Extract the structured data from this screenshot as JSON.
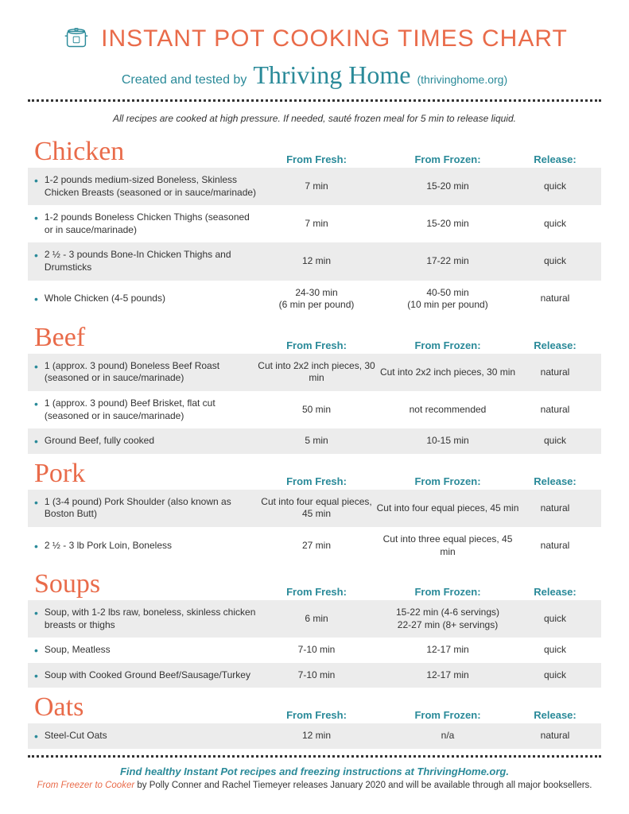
{
  "colors": {
    "accent_orange": "#e96b4a",
    "accent_teal": "#2a8a99",
    "row_alt_bg": "#ececec",
    "text": "#333333"
  },
  "header": {
    "title": "INSTANT POT COOKING TIMES CHART",
    "created_by_prefix": "Created and tested by",
    "brand": "Thriving Home",
    "url": "(thrivinghome.org)"
  },
  "instruction": "All recipes are cooked at high pressure. If needed, sauté frozen meal for 5 min to release liquid.",
  "columns": {
    "fresh": "From Fresh:",
    "frozen": "From Frozen:",
    "release": "Release:"
  },
  "sections": [
    {
      "name": "Chicken",
      "rows": [
        {
          "item": "1-2 pounds medium-sized Boneless, Skinless Chicken Breasts (seasoned or in sauce/marinade)",
          "fresh": "7 min",
          "frozen": "15-20 min",
          "release": "quick"
        },
        {
          "item": "1-2 pounds Boneless Chicken Thighs (seasoned or in sauce/marinade)",
          "fresh": "7 min",
          "frozen": "15-20 min",
          "release": "quick"
        },
        {
          "item": "2 ½ - 3 pounds Bone-In Chicken Thighs and Drumsticks",
          "fresh": "12 min",
          "frozen": "17-22 min",
          "release": "quick"
        },
        {
          "item": "Whole Chicken (4-5 pounds)",
          "fresh": "24-30 min\n(6 min per pound)",
          "frozen": "40-50 min\n(10 min per pound)",
          "release": "natural"
        }
      ]
    },
    {
      "name": "Beef",
      "rows": [
        {
          "item": "1 (approx. 3 pound) Boneless Beef Roast (seasoned or in sauce/marinade)",
          "fresh": "Cut into 2x2 inch pieces, 30 min",
          "frozen": "Cut into 2x2 inch pieces, 30 min",
          "release": "natural"
        },
        {
          "item": "1 (approx. 3 pound) Beef Brisket, flat cut (seasoned or in sauce/marinade)",
          "fresh": "50 min",
          "frozen": "not recommended",
          "release": "natural"
        },
        {
          "item": "Ground Beef, fully cooked",
          "fresh": "5 min",
          "frozen": "10-15 min",
          "release": "quick"
        }
      ]
    },
    {
      "name": "Pork",
      "rows": [
        {
          "item": "1 (3-4 pound) Pork Shoulder (also known as Boston Butt)",
          "fresh": "Cut into four equal pieces, 45 min",
          "frozen": "Cut into four equal pieces, 45 min",
          "release": "natural"
        },
        {
          "item": "2 ½ - 3 lb Pork Loin, Boneless",
          "fresh": "27 min",
          "frozen": "Cut into three equal pieces, 45 min",
          "release": "natural"
        }
      ]
    },
    {
      "name": "Soups",
      "rows": [
        {
          "item": "Soup, with 1-2 lbs raw, boneless, skinless chicken breasts or thighs",
          "fresh": "6 min",
          "frozen": "15-22 min (4-6 servings)\n22-27 min (8+ servings)",
          "release": "quick"
        },
        {
          "item": "Soup, Meatless",
          "fresh": "7-10 min",
          "frozen": "12-17 min",
          "release": "quick"
        },
        {
          "item": "Soup with Cooked Ground Beef/Sausage/Turkey",
          "fresh": "7-10 min",
          "frozen": "12-17 min",
          "release": "quick"
        }
      ]
    },
    {
      "name": "Oats",
      "rows": [
        {
          "item": "Steel-Cut Oats",
          "fresh": "12 min",
          "frozen": "n/a",
          "release": "natural"
        }
      ]
    }
  ],
  "footer": {
    "line1": "Find healthy Instant Pot recipes and freezing instructions at ThrivingHome.org.",
    "book_title": "From Freezer to Cooker",
    "line2_rest": " by Polly Conner and Rachel Tiemeyer releases January 2020 and will be available through all major booksellers."
  }
}
